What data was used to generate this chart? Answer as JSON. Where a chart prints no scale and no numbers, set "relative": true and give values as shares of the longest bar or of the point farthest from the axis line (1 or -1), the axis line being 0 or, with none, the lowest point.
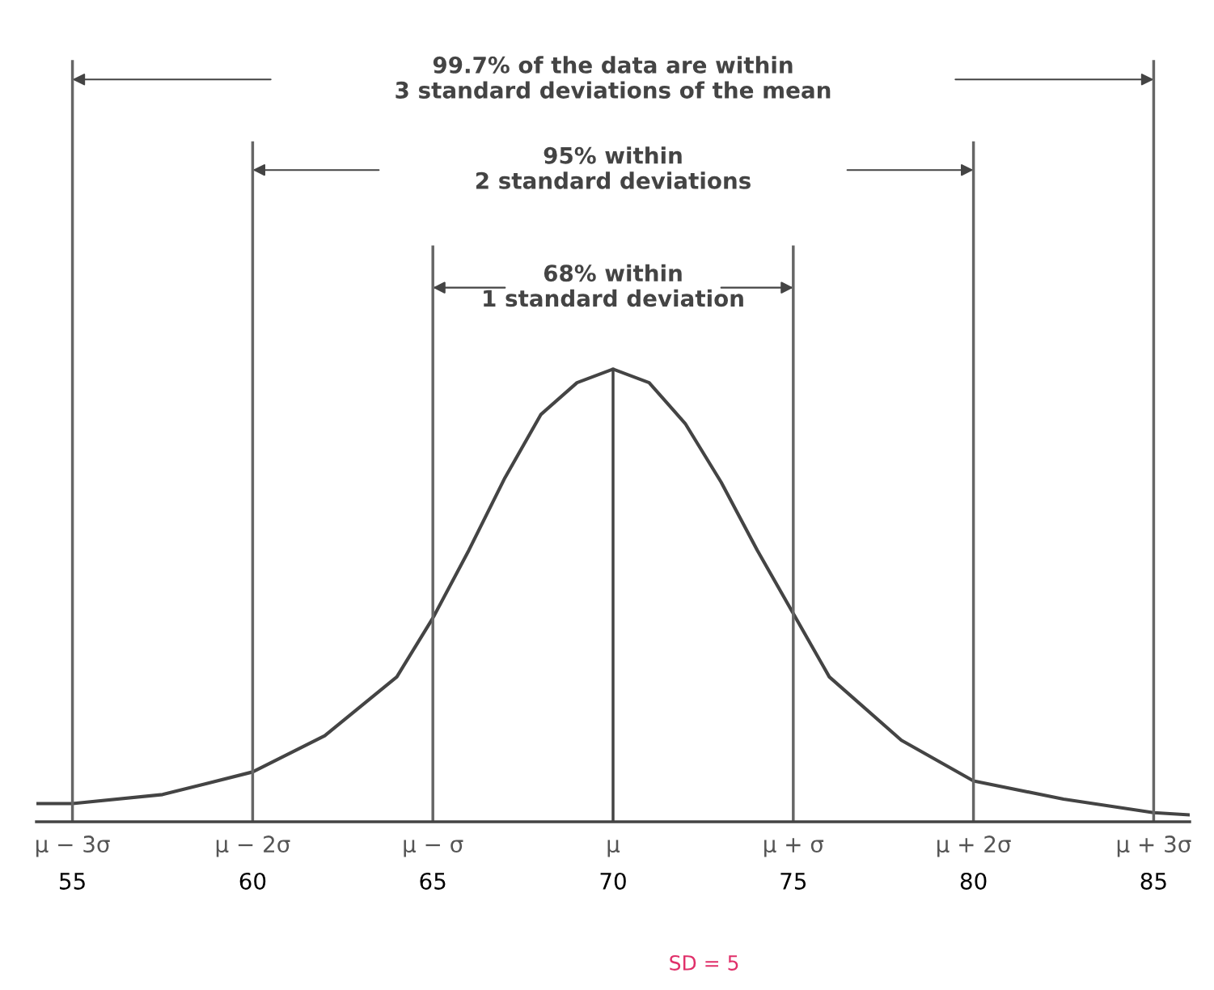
{
  "chart_data": {
    "type": "line",
    "relative": true,
    "x": [
      54,
      55,
      57.5,
      60,
      62,
      64,
      65,
      66,
      67,
      68,
      69,
      70,
      71,
      72,
      73,
      74,
      75,
      76,
      78,
      80,
      82.5,
      85,
      86
    ],
    "series": [
      {
        "color": "#444444",
        "values": [
          0.04,
          0.04,
          0.06,
          0.11,
          0.19,
          0.32,
          0.45,
          0.6,
          0.76,
          0.9,
          0.97,
          1,
          0.97,
          0.88,
          0.75,
          0.6,
          0.46,
          0.32,
          0.18,
          0.09,
          0.05,
          0.02,
          0.015
        ]
      }
    ],
    "xlim": [
      54,
      86
    ],
    "xticks": [
      55,
      60,
      65,
      70,
      75,
      80,
      85
    ],
    "ref_lines": [
      {
        "axis": "x",
        "value": 55,
        "color": "#666666"
      },
      {
        "axis": "x",
        "value": 60,
        "color": "#666666"
      },
      {
        "axis": "x",
        "value": 65,
        "color": "#666666"
      },
      {
        "axis": "x",
        "value": 70,
        "color": "#444444"
      },
      {
        "axis": "x",
        "value": 75,
        "color": "#666666"
      },
      {
        "axis": "x",
        "value": 80,
        "color": "#666666"
      },
      {
        "axis": "x",
        "value": 85,
        "color": "#666666"
      }
    ],
    "annotations": [
      "99.7% of the data are within\n3 standard deviations of the mean",
      "95% within\n2 standard deviations",
      "68% within\n1 standard deviation",
      "SD = 5",
      {
        "text": "μ − 3σ",
        "x": 55,
        "y": 0
      },
      {
        "text": "μ − 2σ",
        "x": 60,
        "y": 0
      },
      {
        "text": "μ − σ",
        "x": 65,
        "y": 0
      },
      {
        "text": "μ",
        "x": 70,
        "y": 0
      },
      {
        "text": "μ + σ",
        "x": 75,
        "y": 0
      },
      {
        "text": "μ + 2σ",
        "x": 80,
        "y": 0
      },
      {
        "text": "μ + 3σ",
        "x": 85,
        "y": 0
      }
    ],
    "grid": false
  }
}
